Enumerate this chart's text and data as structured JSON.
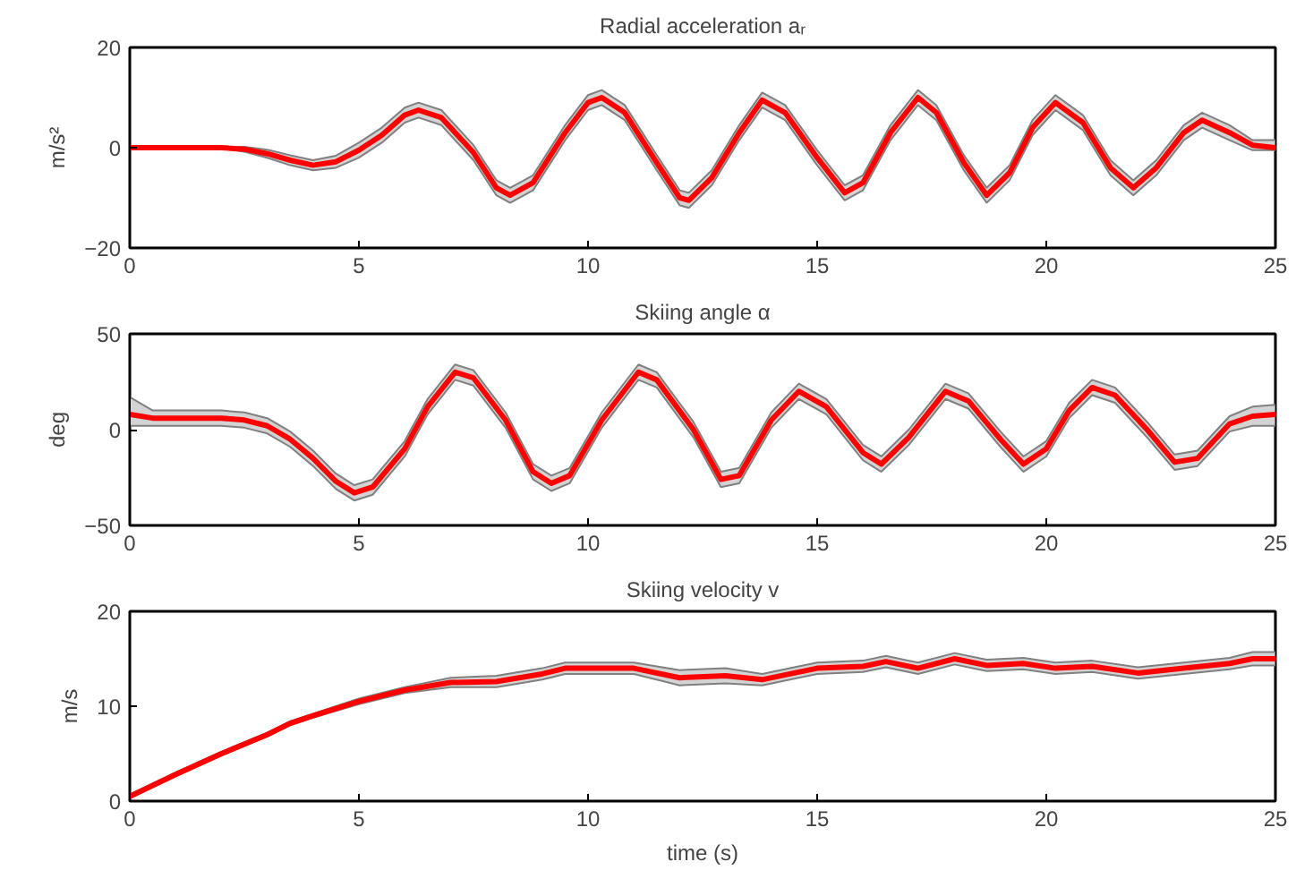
{
  "chart_data": [
    {
      "type": "line",
      "title": "Radial acceleration aᵣ",
      "ylabel": "m/s²",
      "xlim": [
        0,
        25
      ],
      "ylim": [
        -20,
        20
      ],
      "xticks": [
        0,
        5,
        10,
        15,
        20,
        25
      ],
      "yticks": [
        -20,
        0,
        20
      ],
      "series": [
        {
          "color": "#ff0000",
          "x": [
            0,
            2,
            2.5,
            3,
            3.5,
            4,
            4.5,
            5,
            5.5,
            6,
            6.3,
            6.8,
            7.5,
            8,
            8.3,
            8.8,
            9.5,
            10,
            10.3,
            10.8,
            11.5,
            12,
            12.2,
            12.7,
            13.3,
            13.8,
            14.3,
            15,
            15.6,
            16,
            16.6,
            17.2,
            17.6,
            18.2,
            18.7,
            19.2,
            19.7,
            20.2,
            20.8,
            21.4,
            21.9,
            22.4,
            23,
            23.4,
            24,
            24.5,
            25
          ],
          "values": [
            0,
            0,
            -0.3,
            -1.2,
            -2.5,
            -3.5,
            -2.8,
            -0.5,
            2.5,
            6.5,
            7.5,
            6,
            -1,
            -8,
            -9.5,
            -7,
            3,
            9,
            10,
            7,
            -3,
            -10,
            -10.5,
            -6,
            3,
            9.5,
            7,
            -2,
            -9,
            -7,
            3,
            10,
            7,
            -3,
            -9.5,
            -5,
            4,
            9,
            5,
            -4,
            -8,
            -4,
            3,
            5.5,
            3,
            0.5,
            0
          ],
          "lower": [
            0,
            0,
            -0.8,
            -2,
            -3.5,
            -4.5,
            -4,
            -2,
            1,
            5,
            6,
            4.5,
            -2.5,
            -9.5,
            -11,
            -8.5,
            1.5,
            7.5,
            8.5,
            5.5,
            -4.5,
            -11.5,
            -12,
            -7.5,
            1.5,
            8,
            5.5,
            -3.5,
            -10.5,
            -8.5,
            1.5,
            8.5,
            5.5,
            -4.5,
            -11,
            -6.5,
            2.5,
            7.5,
            3.5,
            -5.5,
            -9.5,
            -5.5,
            1.5,
            4,
            1.5,
            -0.5,
            -0.5
          ],
          "upper": [
            0,
            0,
            0.2,
            -0.4,
            -1.5,
            -2.5,
            -1.6,
            1,
            4,
            8,
            9,
            7.5,
            0.5,
            -6.5,
            -8,
            -5.5,
            4.5,
            10.5,
            11.5,
            8.5,
            -1.5,
            -8.5,
            -9,
            -4.5,
            4.5,
            11,
            8.5,
            -0.5,
            -7.5,
            -5.5,
            4.5,
            11.5,
            8.5,
            -1.5,
            -8,
            -3.5,
            5.5,
            10.5,
            6.5,
            -2.5,
            -6.5,
            -2.5,
            4.5,
            7,
            4.5,
            1.5,
            1.5
          ]
        }
      ]
    },
    {
      "type": "line",
      "title": "Skiing angle α",
      "ylabel": "deg",
      "xlim": [
        0,
        25
      ],
      "ylim": [
        -50,
        50
      ],
      "xticks": [
        0,
        5,
        10,
        15,
        20,
        25
      ],
      "yticks": [
        -50,
        0,
        50
      ],
      "series": [
        {
          "color": "#ff0000",
          "x": [
            0,
            0.5,
            2,
            2.5,
            3,
            3.5,
            4,
            4.5,
            4.9,
            5.3,
            6,
            6.5,
            7.1,
            7.5,
            8.2,
            8.8,
            9.2,
            9.6,
            10.3,
            11.1,
            11.5,
            12.3,
            12.9,
            13.3,
            14,
            14.6,
            15.2,
            16,
            16.4,
            17,
            17.8,
            18.3,
            19,
            19.5,
            20,
            20.5,
            21,
            21.5,
            22.2,
            22.8,
            23.3,
            24,
            24.5,
            25
          ],
          "values": [
            8,
            6,
            6,
            5,
            2,
            -5,
            -15,
            -27,
            -33,
            -30,
            -10,
            12,
            30,
            27,
            5,
            -22,
            -28,
            -24,
            5,
            30,
            26,
            0,
            -26,
            -24,
            5,
            20,
            12,
            -12,
            -18,
            -4,
            20,
            15,
            -5,
            -18,
            -10,
            10,
            22,
            18,
            0,
            -17,
            -15,
            3,
            7,
            8
          ],
          "lower": [
            2,
            2,
            2,
            1,
            -2,
            -9,
            -19,
            -31,
            -37,
            -34,
            -14,
            8,
            26,
            23,
            1,
            -26,
            -32,
            -28,
            1,
            26,
            22,
            -4,
            -30,
            -28,
            1,
            16,
            8,
            -16,
            -22,
            -8,
            16,
            11,
            -9,
            -22,
            -14,
            6,
            18,
            14,
            -4,
            -21,
            -19,
            -1,
            2,
            2
          ],
          "upper": [
            17,
            10,
            10,
            9,
            6,
            -1,
            -11,
            -23,
            -29,
            -26,
            -6,
            16,
            34,
            31,
            9,
            -18,
            -24,
            -20,
            9,
            34,
            30,
            4,
            -22,
            -20,
            9,
            24,
            16,
            -8,
            -14,
            0,
            24,
            19,
            -1,
            -14,
            -6,
            14,
            26,
            22,
            4,
            -13,
            -11,
            7,
            12,
            13
          ]
        }
      ]
    },
    {
      "type": "line",
      "title": "Skiing velocity v",
      "xlabel": "time (s)",
      "ylabel": "m/s",
      "xlim": [
        0,
        25
      ],
      "ylim": [
        0,
        20
      ],
      "xticks": [
        0,
        5,
        10,
        15,
        20,
        25
      ],
      "yticks": [
        0,
        10,
        20
      ],
      "series": [
        {
          "color": "#ff0000",
          "x": [
            0,
            1,
            2,
            3,
            3.5,
            4,
            5,
            6,
            7,
            8,
            9,
            9.5,
            11,
            12,
            13,
            13.8,
            14.5,
            15,
            16,
            16.5,
            17.2,
            18,
            18.7,
            19.5,
            20.2,
            21,
            22,
            23,
            24,
            24.5,
            25
          ],
          "values": [
            0.5,
            2.8,
            5,
            7,
            8.2,
            9,
            10.5,
            11.7,
            12.5,
            12.6,
            13.4,
            14,
            14,
            13,
            13.2,
            12.8,
            13.5,
            14,
            14.2,
            14.7,
            14,
            15,
            14.3,
            14.5,
            14,
            14.2,
            13.5,
            14,
            14.5,
            15,
            15
          ],
          "lower": [
            0.3,
            2.6,
            4.8,
            6.8,
            8,
            8.8,
            10.2,
            11.4,
            12,
            12,
            12.8,
            13.4,
            13.4,
            12.2,
            12.4,
            12.2,
            12.9,
            13.4,
            13.6,
            14.1,
            13.4,
            14.4,
            13.7,
            13.9,
            13.4,
            13.6,
            12.9,
            13.4,
            13.9,
            14.3,
            14.3
          ],
          "upper": [
            0.7,
            3,
            5.2,
            7.2,
            8.4,
            9.2,
            10.8,
            12,
            13,
            13.2,
            14,
            14.6,
            14.6,
            13.8,
            14,
            13.4,
            14.1,
            14.6,
            14.8,
            15.3,
            14.6,
            15.6,
            14.9,
            15.1,
            14.6,
            14.8,
            14.1,
            14.6,
            15.1,
            15.7,
            15.7
          ]
        }
      ]
    }
  ]
}
